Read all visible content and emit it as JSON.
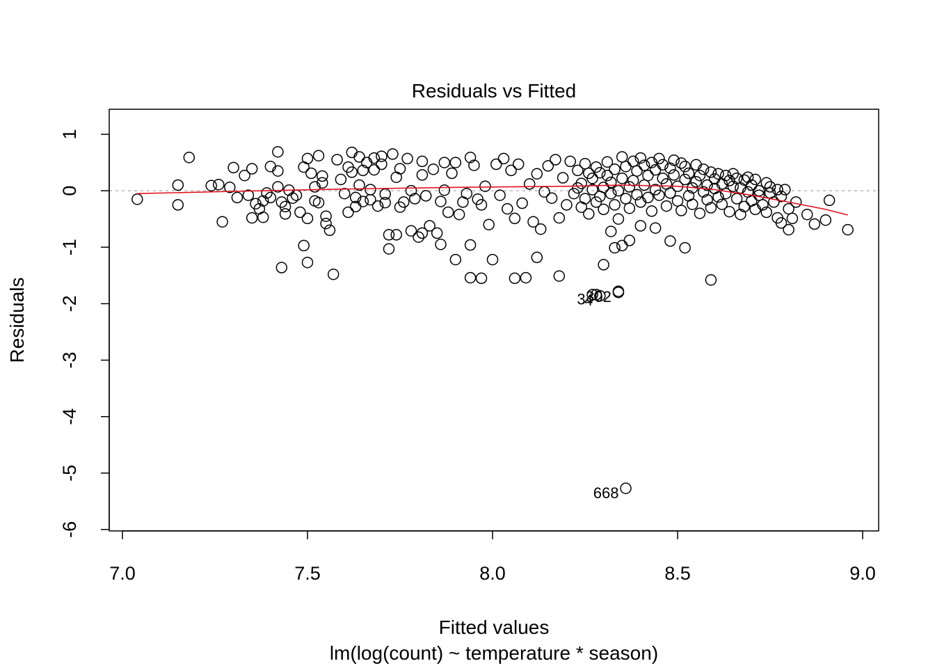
{
  "chart_data": {
    "type": "scatter",
    "title": "Residuals vs Fitted",
    "xlabel": "Fitted values",
    "subtitle": "lm(log(count) ~ temperature * season)",
    "ylabel": "Residuals",
    "xlim": [
      7.0,
      9.0
    ],
    "ylim": [
      -6,
      1
    ],
    "x_ticks": [
      "7.0",
      "7.5",
      "8.0",
      "8.5",
      "9.0"
    ],
    "y_ticks": [
      "-6",
      "-5",
      "-4",
      "-3",
      "-2",
      "-1",
      "0",
      "1"
    ],
    "reference_line_y": 0,
    "colors": {
      "points": "#000000",
      "smoother": "#e0101e",
      "reference": "#b5b5b5"
    },
    "smoother": [
      [
        7.04,
        -0.05
      ],
      [
        7.3,
        -0.01
      ],
      [
        7.6,
        0.03
      ],
      [
        7.9,
        0.06
      ],
      [
        8.2,
        0.08
      ],
      [
        8.35,
        0.1
      ],
      [
        8.5,
        0.08
      ],
      [
        8.6,
        0.02
      ],
      [
        8.7,
        -0.08
      ],
      [
        8.8,
        -0.2
      ],
      [
        8.9,
        -0.33
      ],
      [
        8.96,
        -0.43
      ]
    ],
    "labeled_points": [
      {
        "label": "668",
        "x": 8.36,
        "y": -5.27
      },
      {
        "label": "3",
        "x": 8.27,
        "y": -1.84
      },
      {
        "label": "302",
        "x": 8.34,
        "y": -1.8
      },
      {
        "label": "4",
        "x": 8.29,
        "y": -1.86
      }
    ],
    "points": [
      [
        7.04,
        -0.15
      ],
      [
        7.15,
        0.1
      ],
      [
        7.15,
        -0.25
      ],
      [
        7.18,
        0.59
      ],
      [
        7.24,
        0.09
      ],
      [
        7.26,
        0.11
      ],
      [
        7.27,
        -0.55
      ],
      [
        7.29,
        0.06
      ],
      [
        7.3,
        0.41
      ],
      [
        7.31,
        -0.12
      ],
      [
        7.33,
        0.27
      ],
      [
        7.34,
        -0.08
      ],
      [
        7.35,
        -0.48
      ],
      [
        7.35,
        0.39
      ],
      [
        7.36,
        -0.23
      ],
      [
        7.37,
        -0.32
      ],
      [
        7.38,
        -0.47
      ],
      [
        7.38,
        -0.18
      ],
      [
        7.39,
        -0.04
      ],
      [
        7.4,
        0.43
      ],
      [
        7.4,
        -0.12
      ],
      [
        7.42,
        0.07
      ],
      [
        7.42,
        0.69
      ],
      [
        7.42,
        0.35
      ],
      [
        7.43,
        -0.2
      ],
      [
        7.43,
        -1.36
      ],
      [
        7.44,
        -0.28
      ],
      [
        7.44,
        -0.41
      ],
      [
        7.45,
        0.01
      ],
      [
        7.46,
        -0.13
      ],
      [
        7.47,
        -0.08
      ],
      [
        7.48,
        -0.38
      ],
      [
        7.49,
        0.42
      ],
      [
        7.49,
        -0.97
      ],
      [
        7.5,
        -0.49
      ],
      [
        7.5,
        0.57
      ],
      [
        7.5,
        -1.27
      ],
      [
        7.51,
        0.31
      ],
      [
        7.52,
        0.07
      ],
      [
        7.52,
        -0.18
      ],
      [
        7.53,
        0.62
      ],
      [
        7.53,
        -0.21
      ],
      [
        7.54,
        0.26
      ],
      [
        7.54,
        0.14
      ],
      [
        7.55,
        -0.45
      ],
      [
        7.55,
        -0.58
      ],
      [
        7.56,
        -0.7
      ],
      [
        7.57,
        -1.48
      ],
      [
        7.58,
        0.55
      ],
      [
        7.59,
        0.2
      ],
      [
        7.6,
        -0.05
      ],
      [
        7.61,
        0.42
      ],
      [
        7.61,
        -0.38
      ],
      [
        7.62,
        0.68
      ],
      [
        7.62,
        0.33
      ],
      [
        7.63,
        -0.12
      ],
      [
        7.63,
        -0.28
      ],
      [
        7.64,
        0.6
      ],
      [
        7.64,
        0.1
      ],
      [
        7.65,
        -0.19
      ],
      [
        7.65,
        0.36
      ],
      [
        7.66,
        0.5
      ],
      [
        7.67,
        -0.16
      ],
      [
        7.67,
        0.02
      ],
      [
        7.68,
        0.58
      ],
      [
        7.68,
        0.37
      ],
      [
        7.69,
        -0.27
      ],
      [
        7.7,
        0.47
      ],
      [
        7.7,
        0.61
      ],
      [
        7.71,
        -0.06
      ],
      [
        7.71,
        -0.21
      ],
      [
        7.72,
        -1.03
      ],
      [
        7.73,
        0.65
      ],
      [
        7.74,
        0.24
      ],
      [
        7.74,
        -0.78
      ],
      [
        7.75,
        -0.29
      ],
      [
        7.75,
        0.39
      ],
      [
        7.76,
        -0.2
      ],
      [
        7.77,
        0.57
      ],
      [
        7.78,
        0.0
      ],
      [
        7.78,
        -0.71
      ],
      [
        7.79,
        -0.14
      ],
      [
        7.8,
        -0.82
      ],
      [
        7.81,
        0.52
      ],
      [
        7.81,
        0.28
      ],
      [
        7.82,
        -0.09
      ],
      [
        7.83,
        -0.62
      ],
      [
        7.84,
        0.38
      ],
      [
        7.85,
        -0.75
      ],
      [
        7.86,
        -0.19
      ],
      [
        7.87,
        0.5
      ],
      [
        7.87,
        0.01
      ],
      [
        7.88,
        -0.38
      ],
      [
        7.89,
        0.31
      ],
      [
        7.9,
        0.5
      ],
      [
        7.91,
        -0.42
      ],
      [
        7.92,
        -0.2
      ],
      [
        7.93,
        -0.05
      ],
      [
        7.94,
        -0.96
      ],
      [
        7.94,
        0.59
      ],
      [
        7.95,
        0.45
      ],
      [
        7.96,
        -0.15
      ],
      [
        7.97,
        -0.25
      ],
      [
        7.98,
        0.08
      ],
      [
        7.99,
        -0.6
      ],
      [
        8.0,
        -1.22
      ],
      [
        8.01,
        0.47
      ],
      [
        8.02,
        -0.08
      ],
      [
        8.03,
        0.57
      ],
      [
        8.04,
        -0.32
      ],
      [
        8.05,
        0.36
      ],
      [
        8.06,
        -1.55
      ],
      [
        8.07,
        0.47
      ],
      [
        8.08,
        -0.22
      ],
      [
        8.09,
        -1.54
      ],
      [
        8.1,
        0.12
      ],
      [
        8.11,
        -0.55
      ],
      [
        8.12,
        0.3
      ],
      [
        8.13,
        -0.68
      ],
      [
        8.14,
        -0.02
      ],
      [
        8.15,
        0.44
      ],
      [
        8.16,
        -0.13
      ],
      [
        8.17,
        0.55
      ],
      [
        8.18,
        -0.48
      ],
      [
        8.19,
        0.23
      ],
      [
        8.2,
        -0.25
      ],
      [
        8.21,
        0.52
      ],
      [
        8.22,
        -0.05
      ],
      [
        8.23,
        0.36
      ],
      [
        8.23,
        0.05
      ],
      [
        8.24,
        -0.29
      ],
      [
        8.24,
        0.13
      ],
      [
        8.25,
        0.48
      ],
      [
        8.25,
        -0.14
      ],
      [
        8.26,
        0.31
      ],
      [
        8.26,
        -0.41
      ],
      [
        8.27,
        0.02
      ],
      [
        8.27,
        0.22
      ],
      [
        8.28,
        -0.2
      ],
      [
        8.28,
        0.42
      ],
      [
        8.29,
        -0.1
      ],
      [
        8.29,
        0.32
      ],
      [
        8.3,
        0.06
      ],
      [
        8.3,
        -0.33
      ],
      [
        8.31,
        0.27
      ],
      [
        8.31,
        0.51
      ],
      [
        8.32,
        -0.05
      ],
      [
        8.32,
        0.15
      ],
      [
        8.33,
        -0.25
      ],
      [
        8.33,
        0.38
      ],
      [
        8.34,
        0.0
      ],
      [
        8.34,
        -0.5
      ],
      [
        8.35,
        0.6
      ],
      [
        8.35,
        0.22
      ],
      [
        8.36,
        -0.14
      ],
      [
        8.36,
        0.43
      ],
      [
        8.37,
        0.07
      ],
      [
        8.37,
        -0.31
      ],
      [
        8.38,
        0.52
      ],
      [
        8.38,
        0.18
      ],
      [
        8.39,
        -0.07
      ],
      [
        8.39,
        0.35
      ],
      [
        8.4,
        0.58
      ],
      [
        8.4,
        -0.2
      ],
      [
        8.41,
        0.1
      ],
      [
        8.41,
        0.45
      ],
      [
        8.42,
        -0.12
      ],
      [
        8.42,
        0.27
      ],
      [
        8.43,
        0.5
      ],
      [
        8.43,
        -0.36
      ],
      [
        8.44,
        0.02
      ],
      [
        8.44,
        0.37
      ],
      [
        8.45,
        0.57
      ],
      [
        8.45,
        -0.08
      ],
      [
        8.46,
        0.22
      ],
      [
        8.46,
        0.46
      ],
      [
        8.47,
        -0.27
      ],
      [
        8.47,
        0.12
      ],
      [
        8.48,
        0.4
      ],
      [
        8.48,
        -0.04
      ],
      [
        8.49,
        0.54
      ],
      [
        8.49,
        0.28
      ],
      [
        8.5,
        -0.18
      ],
      [
        8.5,
        0.08
      ],
      [
        8.51,
        0.49
      ],
      [
        8.51,
        -0.35
      ],
      [
        8.52,
        0.2
      ],
      [
        8.52,
        0.43
      ],
      [
        8.53,
        -0.09
      ],
      [
        8.53,
        0.31
      ],
      [
        8.54,
        0.05
      ],
      [
        8.54,
        -0.24
      ],
      [
        8.55,
        0.46
      ],
      [
        8.55,
        0.16
      ],
      [
        8.56,
        -0.4
      ],
      [
        8.56,
        0.27
      ],
      [
        8.57,
        -0.02
      ],
      [
        8.57,
        0.38
      ],
      [
        8.58,
        0.1
      ],
      [
        8.58,
        -0.16
      ],
      [
        8.59,
        0.33
      ],
      [
        8.59,
        -0.3
      ],
      [
        8.6,
        0.21
      ],
      [
        8.6,
        0.04
      ],
      [
        8.61,
        -0.11
      ],
      [
        8.61,
        0.3
      ],
      [
        8.62,
        0.12
      ],
      [
        8.62,
        -0.24
      ],
      [
        8.63,
        0.27
      ],
      [
        8.63,
        -0.05
      ],
      [
        8.64,
        0.18
      ],
      [
        8.64,
        -0.37
      ],
      [
        8.65,
        0.08
      ],
      [
        8.65,
        0.3
      ],
      [
        8.66,
        -0.14
      ],
      [
        8.66,
        0.22
      ],
      [
        8.67,
        -0.42
      ],
      [
        8.67,
        0.05
      ],
      [
        8.68,
        0.19
      ],
      [
        8.68,
        -0.28
      ],
      [
        8.69,
        -0.02
      ],
      [
        8.69,
        0.24
      ],
      [
        8.7,
        -0.18
      ],
      [
        8.7,
        0.1
      ],
      [
        8.71,
        -0.33
      ],
      [
        8.71,
        0.2
      ],
      [
        8.72,
        -0.08
      ],
      [
        8.72,
        0.0
      ],
      [
        8.73,
        -0.25
      ],
      [
        8.74,
        0.14
      ],
      [
        8.74,
        -0.38
      ],
      [
        8.75,
        -0.04
      ],
      [
        8.75,
        0.07
      ],
      [
        8.76,
        -0.2
      ],
      [
        8.77,
        0.02
      ],
      [
        8.77,
        -0.48
      ],
      [
        8.78,
        -0.1
      ],
      [
        8.78,
        -0.57
      ],
      [
        8.79,
        0.02
      ],
      [
        8.8,
        -0.32
      ],
      [
        8.8,
        -0.69
      ],
      [
        8.81,
        -0.49
      ],
      [
        8.82,
        -0.2
      ],
      [
        8.85,
        -0.42
      ],
      [
        8.87,
        -0.59
      ],
      [
        8.9,
        -0.52
      ],
      [
        8.91,
        -0.17
      ],
      [
        8.96,
        -0.69
      ],
      [
        8.34,
        -1.78
      ],
      [
        8.28,
        -1.84
      ],
      [
        8.35,
        -0.97
      ],
      [
        8.33,
        -1.01
      ],
      [
        8.37,
        -0.88
      ],
      [
        8.32,
        -0.72
      ],
      [
        8.3,
        -1.31
      ],
      [
        8.4,
        -0.62
      ],
      [
        8.44,
        -0.66
      ],
      [
        8.48,
        -0.89
      ],
      [
        8.52,
        -1.01
      ],
      [
        8.59,
        -1.58
      ],
      [
        8.18,
        -1.51
      ],
      [
        8.12,
        -1.18
      ],
      [
        8.06,
        -0.49
      ],
      [
        7.97,
        -1.55
      ],
      [
        7.94,
        -1.54
      ],
      [
        7.9,
        -1.22
      ],
      [
        7.86,
        -0.95
      ],
      [
        7.81,
        -0.75
      ],
      [
        7.72,
        -0.78
      ]
    ]
  }
}
